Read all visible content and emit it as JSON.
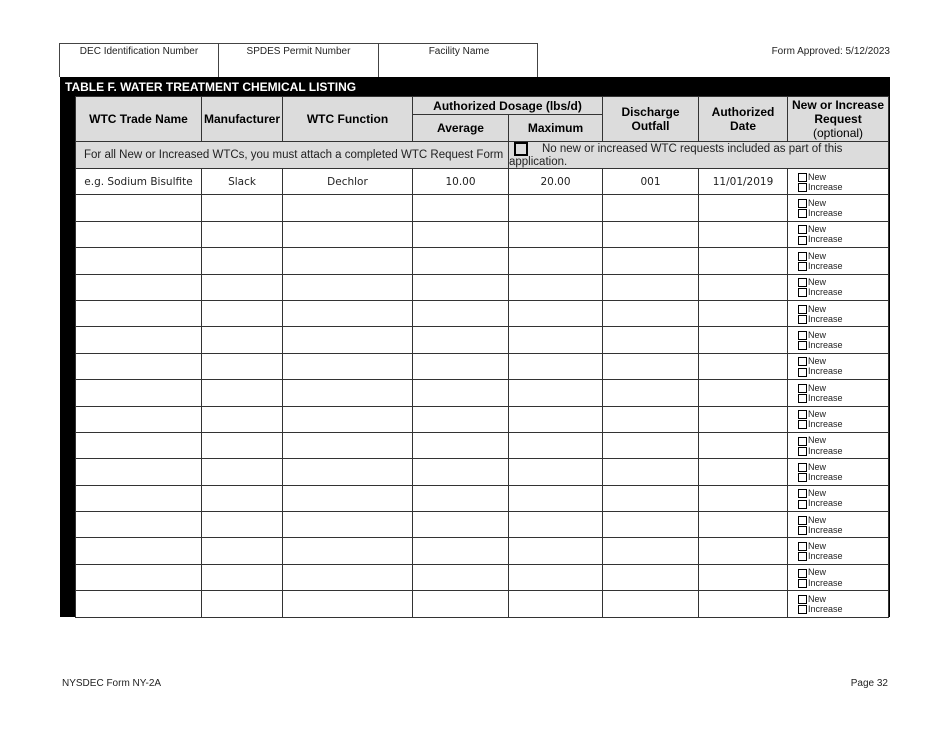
{
  "header": {
    "dec_id_label": "DEC Identification Number",
    "spdes_label": "SPDES Permit Number",
    "facility_label": "Facility Name",
    "approved": "Form Approved: 5/12/2023"
  },
  "table": {
    "title": "TABLE F. WATER TREATMENT CHEMICAL LISTING",
    "columns": {
      "trade_name": "WTC Trade Name",
      "manufacturer": "Manufacturer",
      "function": "WTC Function",
      "dosage_group": "Authorized Dosage (lbs/d)",
      "average": "Average",
      "maximum": "Maximum",
      "outfall": "Discharge Outfall",
      "date": "Authorized Date",
      "request_bold": "New or Increase",
      "request_bold2": "Request",
      "request_optional": "(optional)"
    },
    "notice_left": "For all New or Increased WTCs, you must attach a completed WTC Request Form",
    "notice_right": "No new or increased WTC requests included as part of this application.",
    "option_new": "New",
    "option_increase": "Increase",
    "rows": [
      {
        "trade_name": "e.g. Sodium Bisulfite",
        "manufacturer": "Slack",
        "function": "Dechlor",
        "average": "10.00",
        "maximum": "20.00",
        "outfall": "001",
        "date": "11/01/2019"
      },
      {},
      {},
      {},
      {},
      {},
      {},
      {},
      {},
      {},
      {},
      {},
      {},
      {},
      {},
      {},
      {}
    ]
  },
  "footer": {
    "form": "NYSDEC Form NY-2A",
    "page": "Page 32"
  }
}
